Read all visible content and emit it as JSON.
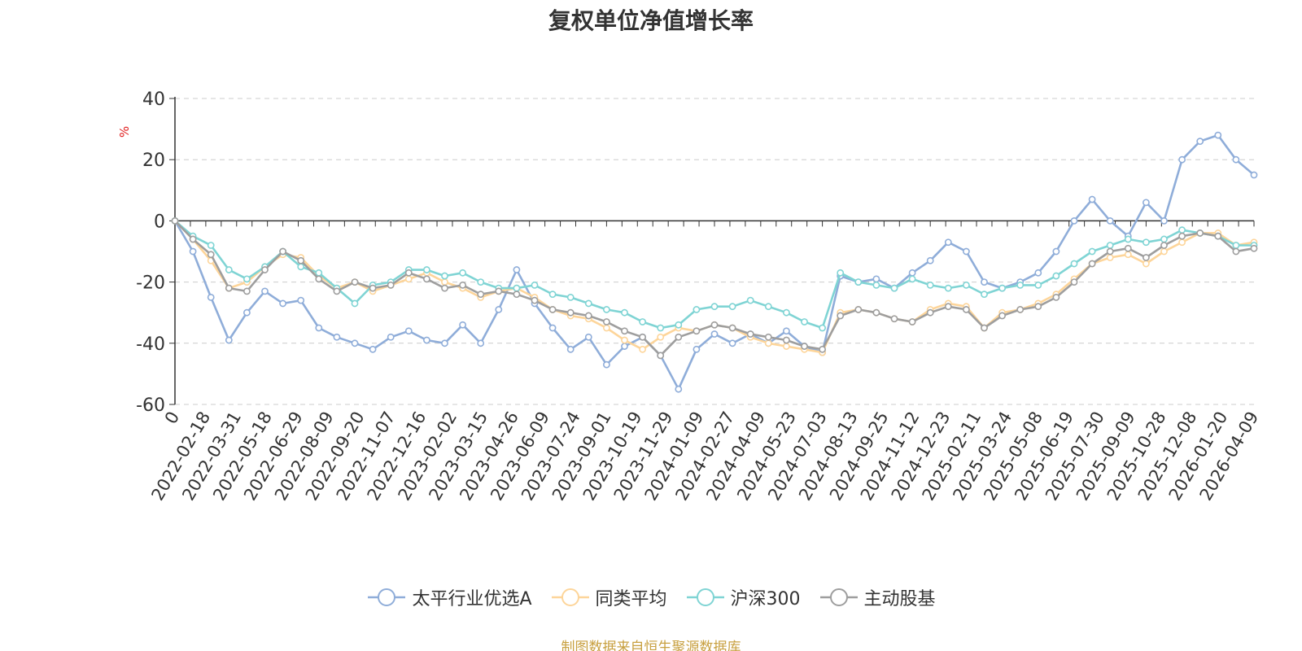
{
  "chart_data": {
    "type": "line",
    "title": "复权单位净值增长率",
    "ylabel": "%",
    "ylim": [
      -60,
      40
    ],
    "yticks": [
      -60,
      -40,
      -20,
      0,
      20,
      40
    ],
    "grid": true,
    "legend_position": "bottom",
    "x_tick_labels": [
      "0",
      "2022-02-18",
      "2022-03-31",
      "2022-05-18",
      "2022-06-29",
      "2022-08-09",
      "2022-09-20",
      "2022-11-07",
      "2022-12-16",
      "2023-02-02",
      "2023-03-15",
      "2023-04-26",
      "2023-06-09",
      "2023-07-24",
      "2023-09-01",
      "2023-10-19",
      "2023-11-29",
      "2024-01-09",
      "2024-02-27",
      "2024-04-09",
      "2024-05-23",
      "2024-07-03",
      "2024-08-13",
      "2024-09-25",
      "2024-11-12",
      "2024-12-23",
      "2025-02-11",
      "2025-03-24",
      "2025-05-08",
      "2025-06-19",
      "2025-07-30",
      "2025-09-09",
      "2025-10-28",
      "2025-12-08",
      "2026-01-20",
      "2026-04-09"
    ],
    "series": [
      {
        "name": "太平行业优选A",
        "color": "#8fadd9",
        "values": [
          0,
          -10,
          -25,
          -39,
          -30,
          -23,
          -27,
          -26,
          -35,
          -38,
          -40,
          -42,
          -38,
          -36,
          -39,
          -40,
          -34,
          -40,
          -29,
          -16,
          -27,
          -35,
          -42,
          -38,
          -47,
          -41,
          -38,
          -44,
          -55,
          -42,
          -37,
          -40,
          -37,
          -40,
          -36,
          -41,
          -43,
          -18,
          -20,
          -19,
          -22,
          -17,
          -13,
          -7,
          -10,
          -20,
          -22,
          -20,
          -17,
          -10,
          0,
          7,
          0,
          -5,
          6,
          0,
          20,
          26,
          28,
          20,
          15
        ]
      },
      {
        "name": "同类平均",
        "color": "#fdd59a",
        "values": [
          0,
          -6,
          -13,
          -22,
          -20,
          -15,
          -11,
          -12,
          -18,
          -22,
          -20,
          -23,
          -21,
          -19,
          -17,
          -20,
          -22,
          -25,
          -23,
          -22,
          -25,
          -29,
          -31,
          -32,
          -35,
          -39,
          -42,
          -38,
          -35,
          -36,
          -34,
          -35,
          -38,
          -40,
          -41,
          -42,
          -43,
          -30,
          -29,
          -30,
          -32,
          -33,
          -29,
          -27,
          -28,
          -35,
          -30,
          -29,
          -27,
          -24,
          -19,
          -14,
          -12,
          -11,
          -14,
          -10,
          -7,
          -4,
          -4,
          -8,
          -7
        ]
      },
      {
        "name": "沪深300",
        "color": "#7fd4d4",
        "values": [
          0,
          -5,
          -8,
          -16,
          -19,
          -15,
          -10,
          -15,
          -17,
          -22,
          -27,
          -21,
          -20,
          -16,
          -16,
          -18,
          -17,
          -20,
          -22,
          -22,
          -21,
          -24,
          -25,
          -27,
          -29,
          -30,
          -33,
          -35,
          -34,
          -29,
          -28,
          -28,
          -26,
          -28,
          -30,
          -33,
          -35,
          -17,
          -20,
          -21,
          -22,
          -19,
          -21,
          -22,
          -21,
          -24,
          -22,
          -21,
          -21,
          -18,
          -14,
          -10,
          -8,
          -6,
          -7,
          -6,
          -3,
          -4,
          -5,
          -8,
          -8
        ]
      },
      {
        "name": "主动股基",
        "color": "#9e9e9e",
        "values": [
          0,
          -6,
          -11,
          -22,
          -23,
          -16,
          -10,
          -13,
          -19,
          -23,
          -20,
          -22,
          -21,
          -17,
          -19,
          -22,
          -21,
          -24,
          -23,
          -24,
          -26,
          -29,
          -30,
          -31,
          -33,
          -36,
          -38,
          -44,
          -38,
          -36,
          -34,
          -35,
          -37,
          -38,
          -39,
          -41,
          -42,
          -31,
          -29,
          -30,
          -32,
          -33,
          -30,
          -28,
          -29,
          -35,
          -31,
          -29,
          -28,
          -25,
          -20,
          -14,
          -10,
          -9,
          -12,
          -8,
          -5,
          -4,
          -5,
          -10,
          -9
        ]
      }
    ]
  },
  "source_note": "制图数据来自恒生聚源数据库"
}
